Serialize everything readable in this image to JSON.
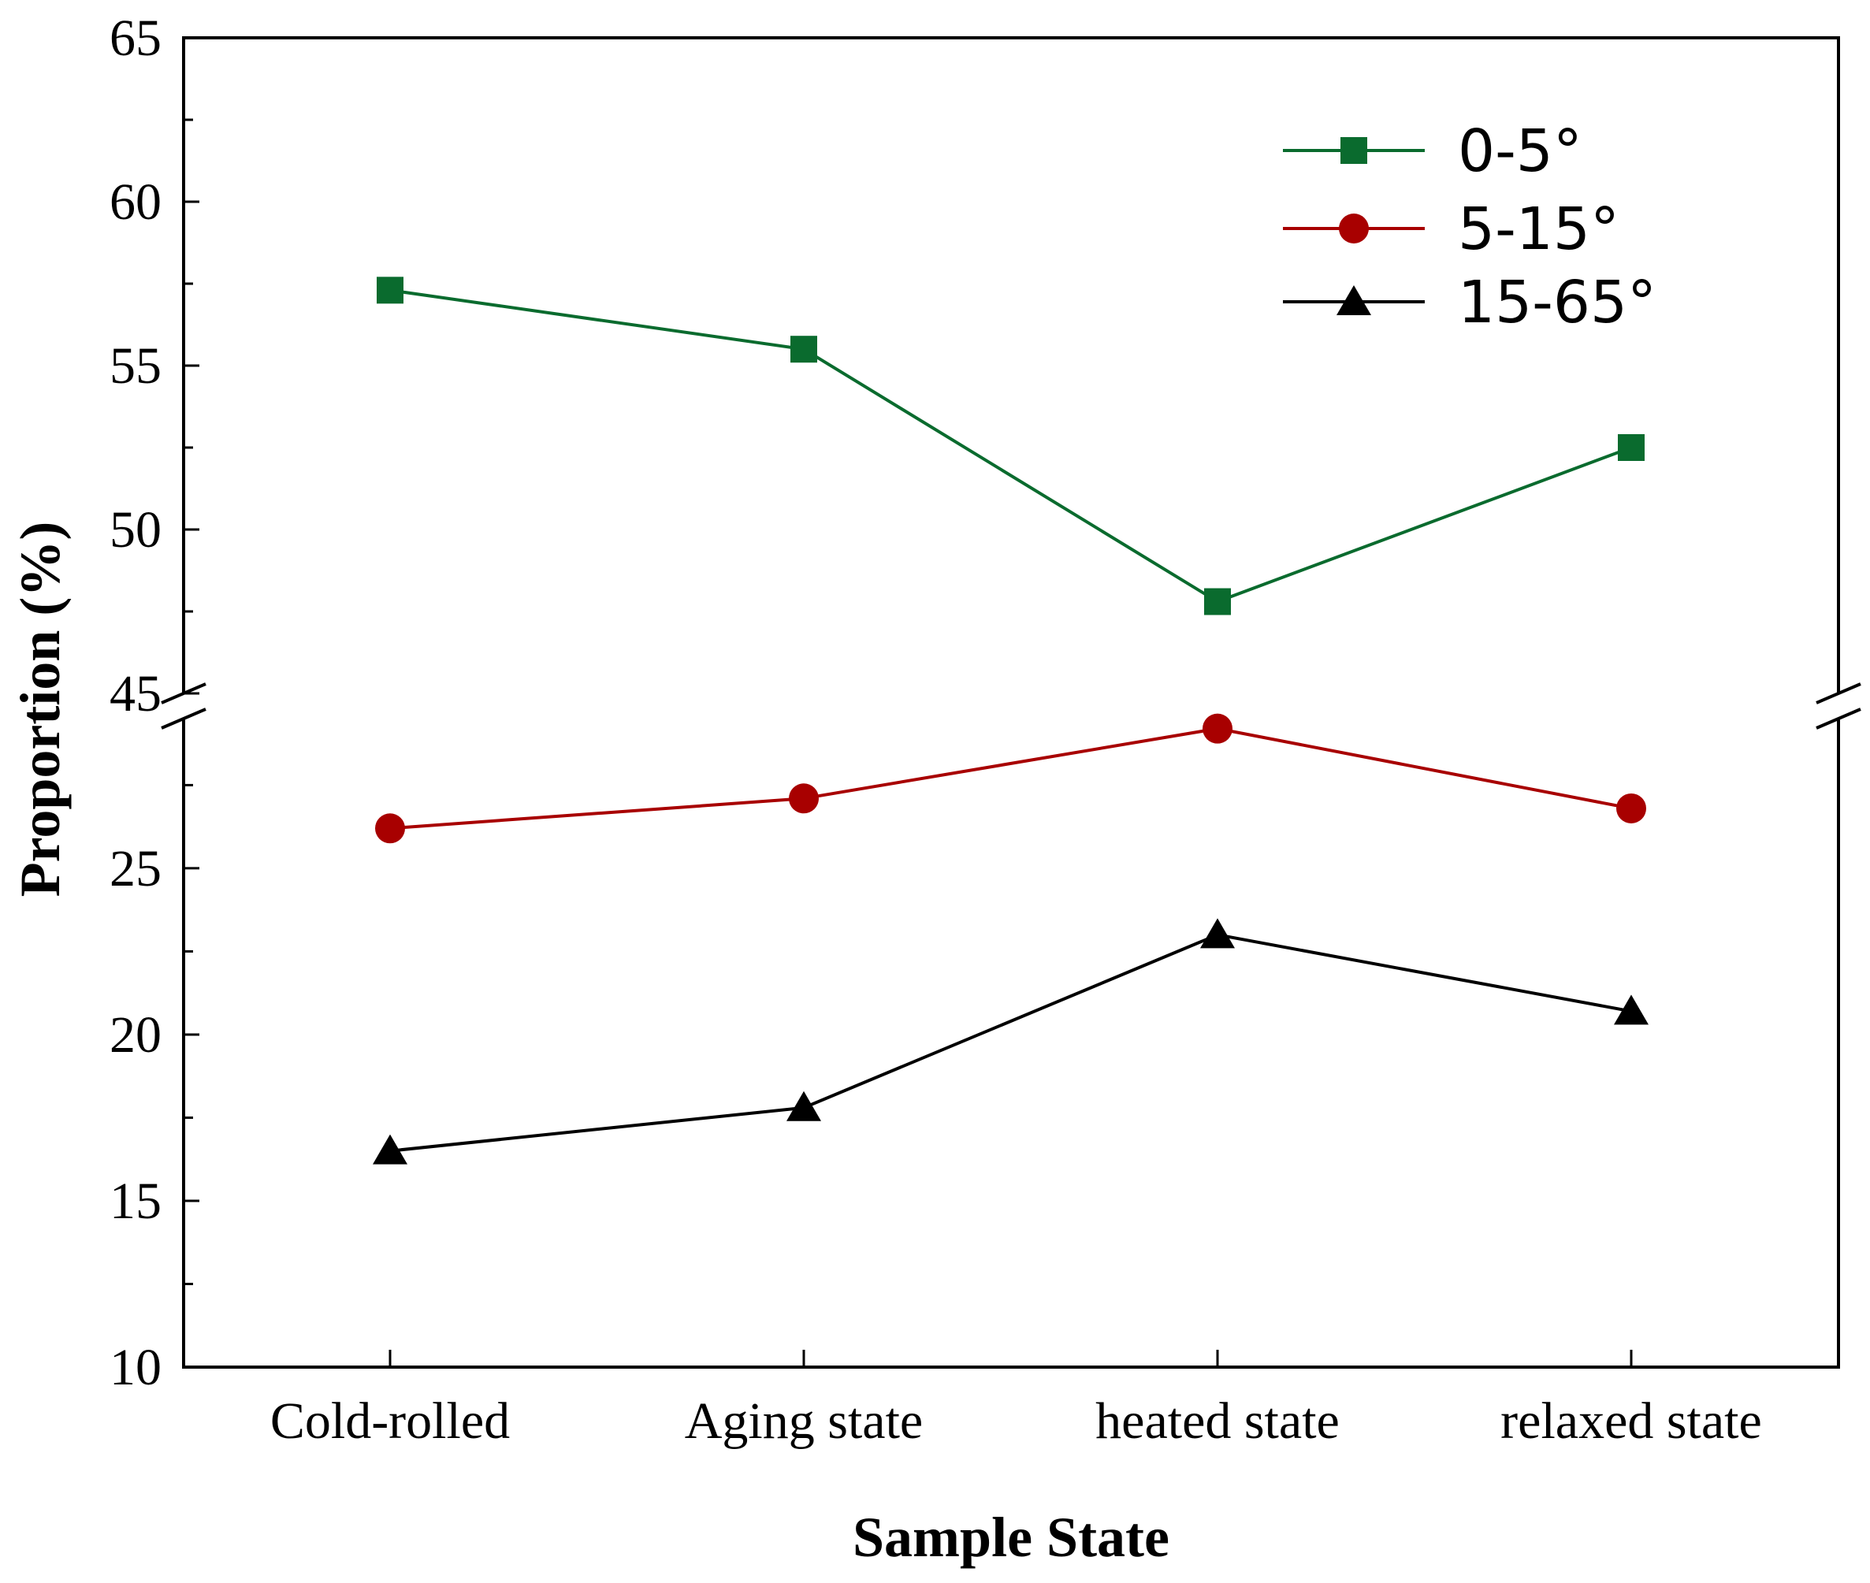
{
  "chart_data": {
    "type": "line",
    "title": "",
    "xlabel": "Sample State",
    "ylabel": "Proportion (%)",
    "categories": [
      "Cold-rolled",
      "Aging state",
      "heated state",
      "relaxed state"
    ],
    "axis_break": true,
    "ylim_lower": [
      10,
      29.5
    ],
    "ylim_upper": [
      45,
      65
    ],
    "yticks_lower": [
      10,
      15,
      20,
      25
    ],
    "yticks_upper": [
      45,
      50,
      55,
      60,
      65
    ],
    "grid": false,
    "legend_position": "top-right",
    "series": [
      {
        "name": "0-5°",
        "marker": "square",
        "color": "#0a6b2e",
        "values": [
          57.3,
          55.5,
          47.8,
          52.5
        ]
      },
      {
        "name": "5-15°",
        "marker": "circle",
        "color": "#a80000",
        "values": [
          26.2,
          27.1,
          29.2,
          26.8
        ]
      },
      {
        "name": "15-65°",
        "marker": "triangle",
        "color": "#000000",
        "values": [
          16.5,
          17.8,
          23.0,
          20.7
        ]
      }
    ]
  }
}
